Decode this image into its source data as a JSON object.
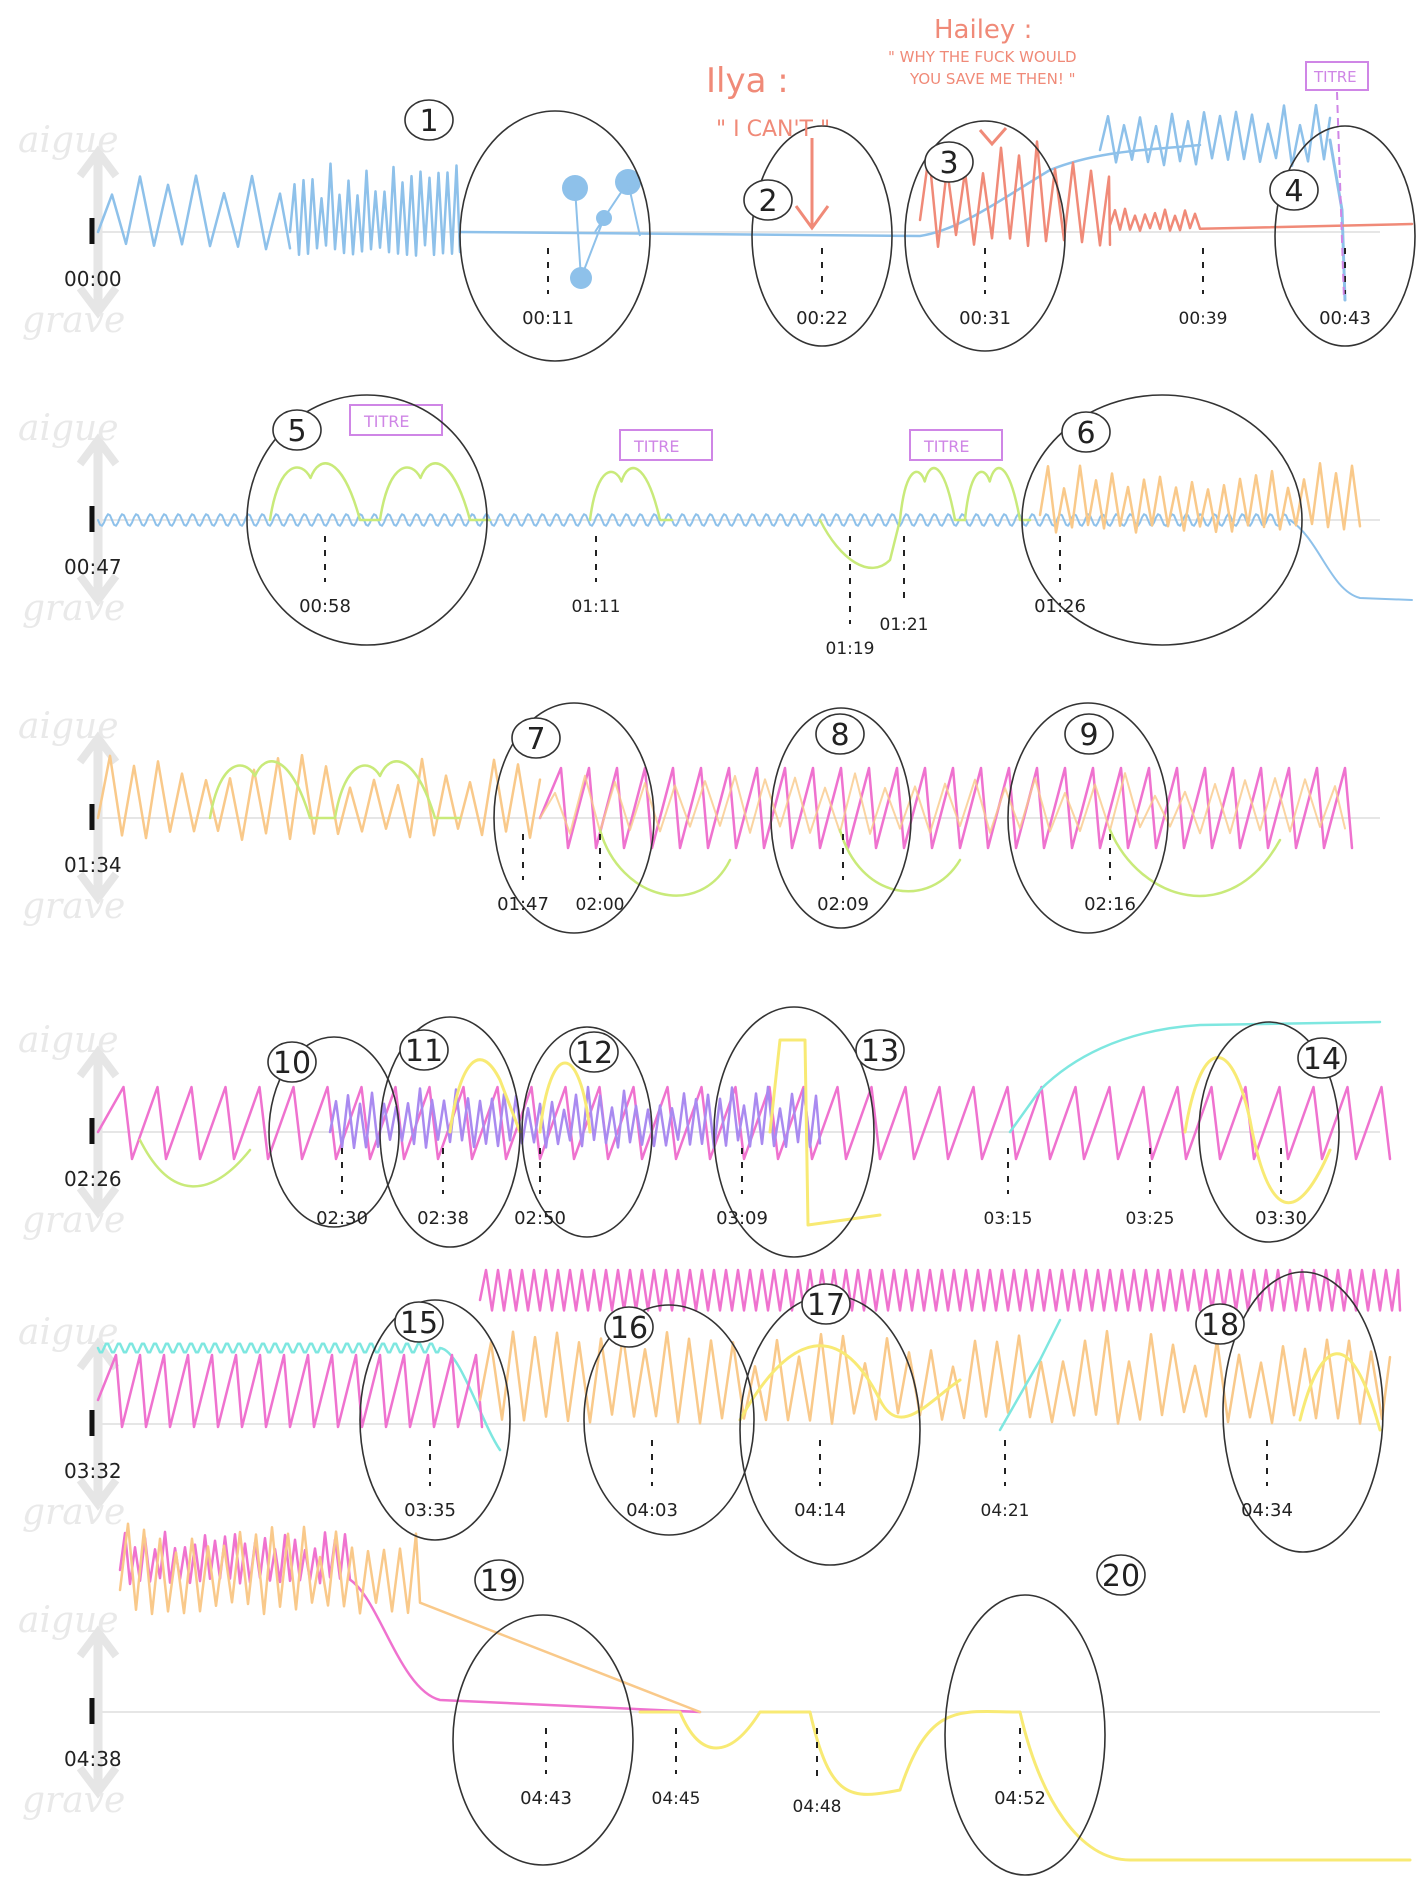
{
  "colors": {
    "blue": "#8ec1ea",
    "salmon": "#f08a78",
    "green": "#c9ea7a",
    "orange": "#f9c98a",
    "pink": "#ef72cf",
    "purple": "#a98af0",
    "yellow": "#f8ea74",
    "cyan": "#7ee7e0",
    "violet": "#cf86e6",
    "ink": "#222222",
    "baseline": "#e6e6e6",
    "axis": "#e6e6e6"
  },
  "axis_labels": {
    "high": "aigue",
    "low": "grave"
  },
  "rows": [
    {
      "start_time": "00:00",
      "markers": [
        {
          "n": "1",
          "time": "00:11"
        },
        {
          "n": "2",
          "time": "00:22"
        },
        {
          "n": "3",
          "time": "00:31"
        },
        {
          "n": "4",
          "time": "00:43"
        }
      ],
      "extra_times": [
        "00:39"
      ]
    },
    {
      "start_time": "00:47",
      "markers": [
        {
          "n": "5",
          "time": "00:58"
        },
        {
          "n": "6",
          "time": "01:26"
        }
      ],
      "extra_times": [
        "01:11",
        "01:19",
        "01:21"
      ],
      "titles": [
        "TITRE",
        "TITRE",
        "TITRE"
      ]
    },
    {
      "start_time": "01:34",
      "markers": [
        {
          "n": "7",
          "time": "01:47"
        },
        {
          "n": "8",
          "time": "02:09"
        },
        {
          "n": "9",
          "time": "02:16"
        }
      ],
      "extra_times": [
        "02:00"
      ]
    },
    {
      "start_time": "02:26",
      "markers": [
        {
          "n": "10",
          "time": "02:30"
        },
        {
          "n": "11",
          "time": "02:38"
        },
        {
          "n": "12",
          "time": "02:50"
        },
        {
          "n": "13",
          "time": "03:09"
        },
        {
          "n": "14",
          "time": "03:30"
        }
      ],
      "extra_times": [
        "03:15",
        "03:25"
      ]
    },
    {
      "start_time": "03:32",
      "markers": [
        {
          "n": "15",
          "time": "03:35"
        },
        {
          "n": "16",
          "time": "04:03"
        },
        {
          "n": "17",
          "time": "04:14"
        },
        {
          "n": "18",
          "time": "04:34"
        }
      ],
      "extra_times": [
        "04:21"
      ]
    },
    {
      "start_time": "04:38",
      "markers": [
        {
          "n": "19",
          "time": "04:43"
        },
        {
          "n": "20",
          "time": "04:52"
        }
      ],
      "extra_times": [
        "04:45",
        "04:48"
      ]
    }
  ],
  "annotations": {
    "ilya_name": "Ilya :",
    "ilya_quote": "\" I CAN'T \"",
    "hailey_name": "Hailey :",
    "hailey_quote_1": "\" WHY THE FUCK WOULD",
    "hailey_quote_2": "YOU SAVE ME THEN! \"",
    "titre_top": "TITRE"
  }
}
